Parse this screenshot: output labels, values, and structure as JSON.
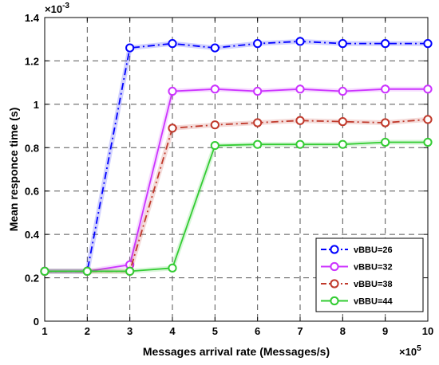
{
  "chart_data": {
    "type": "line",
    "xlabel": "Messages arrival rate (Messages/s)",
    "ylabel": "Mean responce time (s)",
    "x_exponent_label": "×10",
    "x_exponent_power": "5",
    "y_exponent_label": "×10",
    "y_exponent_power": "-3",
    "x": [
      1,
      2,
      3,
      4,
      5,
      6,
      7,
      8,
      9,
      10
    ],
    "xlim": [
      1,
      10
    ],
    "ylim": [
      0,
      1.4
    ],
    "xticks": [
      "1",
      "2",
      "3",
      "4",
      "5",
      "6",
      "7",
      "8",
      "9",
      "10"
    ],
    "yticks": [
      "0",
      "0.2",
      "0.4",
      "0.6",
      "0.8",
      "1",
      "1.2",
      "1.4"
    ],
    "grid": true,
    "legend_position": "bottom-right",
    "series": [
      {
        "name": "vBBU=26",
        "color": "#0000ff",
        "dash": "dash-dot",
        "values": [
          0.23,
          0.23,
          1.26,
          1.28,
          1.26,
          1.28,
          1.29,
          1.28,
          1.28,
          1.28
        ]
      },
      {
        "name": "vBBU=32",
        "color": "#cc33ff",
        "dash": "solid",
        "values": [
          0.23,
          0.23,
          0.26,
          1.06,
          1.07,
          1.06,
          1.07,
          1.06,
          1.07,
          1.07
        ]
      },
      {
        "name": "vBBU=38",
        "color": "#c0392b",
        "dash": "dash-dot",
        "values": [
          0.23,
          0.23,
          0.23,
          0.89,
          0.905,
          0.915,
          0.925,
          0.92,
          0.915,
          0.93
        ]
      },
      {
        "name": "vBBU=44",
        "color": "#33cc33",
        "dash": "solid",
        "values": [
          0.23,
          0.23,
          0.23,
          0.245,
          0.81,
          0.815,
          0.815,
          0.815,
          0.825,
          0.825
        ]
      }
    ]
  }
}
